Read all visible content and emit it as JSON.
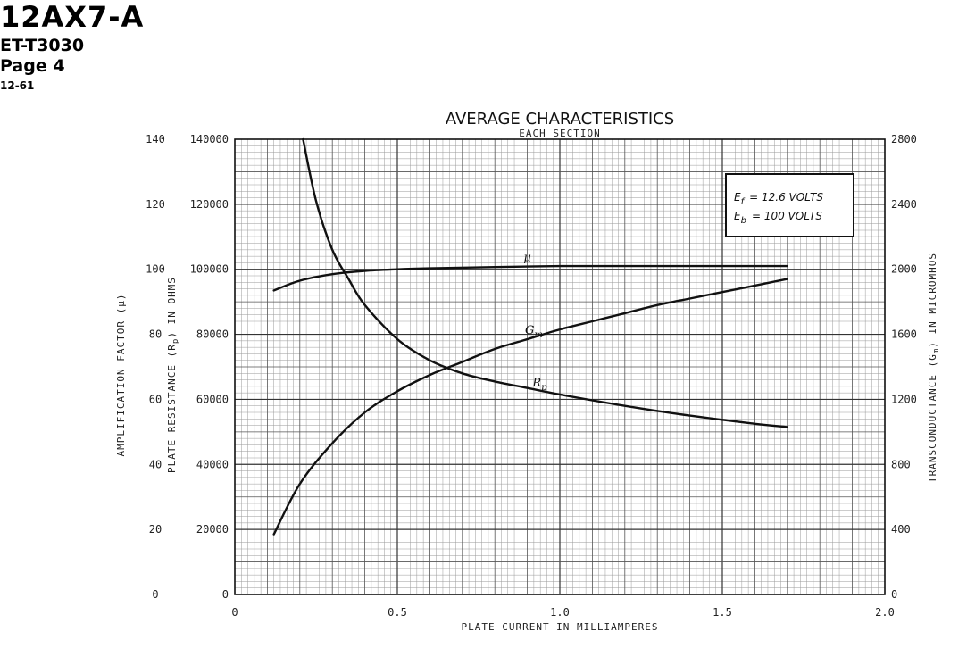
{
  "header": {
    "tube_type": "12AX7-A",
    "doc_code": "ET-T3030",
    "page": "Page 4",
    "date": "12-61"
  },
  "conditions": {
    "ef_label": "E",
    "ef_sub": "f",
    "ef_value": "= 12.6 VOLTS",
    "eb_label": "E",
    "eb_sub": "b",
    "eb_value": "= 100 VOLTS"
  },
  "chart_data": {
    "type": "line",
    "title": "AVERAGE CHARACTERISTICS",
    "subtitle": "EACH SECTION",
    "xlabel": "PLATE CURRENT IN MILLIAMPERES",
    "ylabel_mu": "AMPLIFICATION FACTOR (μ)",
    "ylabel_rp": "PLATE RESISTANCE (R",
    "ylabel_rp_sub": "p",
    "ylabel_rp_tail": ") IN OHMS",
    "ylabel_gm": "TRANSCONDUCTANCE (G",
    "ylabel_gm_sub": "m",
    "ylabel_gm_tail": ") IN MICROMHOS",
    "xlim": [
      0,
      2.0
    ],
    "x_ticks": [
      "0",
      "0.5",
      "1.0",
      "1.5",
      "2.0"
    ],
    "mu_axis": {
      "range": [
        0,
        140
      ],
      "ticks": [
        "0",
        "20",
        "40",
        "60",
        "80",
        "100",
        "120",
        "140"
      ]
    },
    "rp_axis": {
      "range": [
        0,
        140000
      ],
      "ticks": [
        "0",
        "20000",
        "40000",
        "60000",
        "80000",
        "100000",
        "120000",
        "140000"
      ]
    },
    "gm_axis": {
      "range": [
        0,
        2800
      ],
      "ticks": [
        "0",
        "400",
        "800",
        "1200",
        "1600",
        "2000",
        "2400",
        "2800"
      ]
    },
    "grid": true,
    "series": [
      {
        "name": "μ",
        "axis": "mu",
        "x": [
          0.12,
          0.2,
          0.3,
          0.4,
          0.5,
          0.6,
          0.8,
          1.0,
          1.2,
          1.4,
          1.7
        ],
        "y": [
          93.5,
          96.5,
          98.5,
          99.5,
          100,
          100.3,
          100.7,
          101,
          101,
          101,
          101
        ]
      },
      {
        "name": "G",
        "name_sub": "m",
        "axis": "gm",
        "x": [
          0.12,
          0.2,
          0.3,
          0.4,
          0.5,
          0.6,
          0.7,
          0.8,
          0.9,
          1.0,
          1.1,
          1.2,
          1.3,
          1.4,
          1.5,
          1.6,
          1.7
        ],
        "y": [
          370,
          680,
          930,
          1120,
          1250,
          1350,
          1430,
          1510,
          1570,
          1630,
          1680,
          1730,
          1780,
          1820,
          1860,
          1900,
          1940
        ]
      },
      {
        "name": "R",
        "name_sub": "p",
        "axis": "rp",
        "x": [
          0.21,
          0.25,
          0.3,
          0.35,
          0.4,
          0.5,
          0.6,
          0.7,
          0.8,
          0.9,
          1.0,
          1.2,
          1.4,
          1.6,
          1.7
        ],
        "y": [
          140000,
          121000,
          106000,
          97000,
          89000,
          78500,
          72000,
          68000,
          65500,
          63500,
          61500,
          58000,
          55000,
          52500,
          51500
        ]
      }
    ]
  }
}
